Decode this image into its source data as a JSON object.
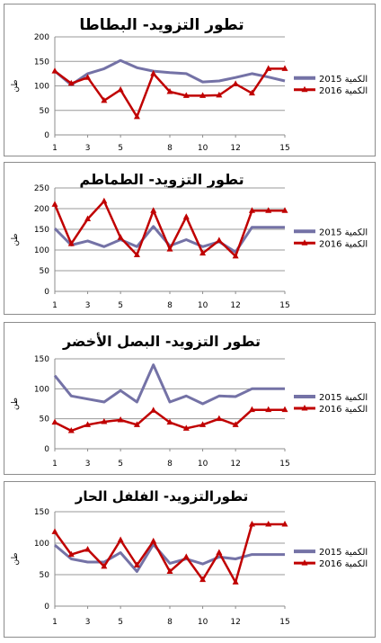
{
  "colors": {
    "series_2015": "#7472a6",
    "series_2016": "#c00000",
    "axis": "#8c8c8c",
    "grid": "#9a9a9a",
    "frame": "#8c8c8c"
  },
  "chart_data": [
    {
      "type": "line",
      "title": "تطور التزويد- البطاطا",
      "ylabel": "طن",
      "x": [
        1,
        2,
        3,
        4,
        5,
        6,
        7,
        8,
        9,
        10,
        11,
        12,
        13,
        14,
        15
      ],
      "x_ticks": [
        "1",
        "3",
        "5",
        "8",
        "10",
        "12",
        "15"
      ],
      "y_ticks": [
        "0",
        "50",
        "100",
        "150",
        "200"
      ],
      "ylim": [
        0,
        200
      ],
      "grid": true,
      "legend_position": "right",
      "series": [
        {
          "name": "الكمية 2015",
          "values": [
            130,
            102,
            125,
            135,
            152,
            137,
            130,
            127,
            125,
            108,
            110,
            117,
            125,
            118,
            110
          ]
        },
        {
          "name": "الكمية 2016",
          "values": [
            130,
            105,
            117,
            70,
            92,
            37,
            125,
            88,
            80,
            80,
            81,
            104,
            85,
            135,
            135
          ]
        }
      ]
    },
    {
      "type": "line",
      "title": "تطور التزويد- الطماطم",
      "ylabel": "طن",
      "x": [
        1,
        2,
        3,
        4,
        5,
        6,
        7,
        8,
        9,
        10,
        11,
        12,
        13,
        14,
        15
      ],
      "x_ticks": [
        "1",
        "3",
        "5",
        "8",
        "10",
        "12",
        "15"
      ],
      "y_ticks": [
        "0",
        "50",
        "100",
        "150",
        "200",
        "250"
      ],
      "ylim": [
        0,
        250
      ],
      "grid": true,
      "legend_position": "right",
      "series": [
        {
          "name": "الكمية 2015",
          "values": [
            152,
            112,
            122,
            108,
            125,
            108,
            157,
            110,
            125,
            108,
            120,
            95,
            155,
            155,
            155
          ]
        },
        {
          "name": "الكمية 2016",
          "values": [
            210,
            115,
            175,
            218,
            130,
            88,
            195,
            102,
            180,
            92,
            123,
            85,
            195,
            195,
            195
          ]
        }
      ]
    },
    {
      "type": "line",
      "title": "تطور التزويد- البصل الأخضر",
      "ylabel": "طن",
      "x": [
        1,
        2,
        3,
        4,
        5,
        6,
        7,
        8,
        9,
        10,
        11,
        12,
        13,
        14,
        15
      ],
      "x_ticks": [
        "1",
        "3",
        "5",
        "8",
        "10",
        "12",
        "15"
      ],
      "y_ticks": [
        "0",
        "50",
        "100",
        "150"
      ],
      "ylim": [
        0,
        150
      ],
      "grid": true,
      "legend_position": "right",
      "series": [
        {
          "name": "الكمية 2015",
          "values": [
            122,
            88,
            83,
            78,
            97,
            78,
            140,
            78,
            88,
            75,
            88,
            87,
            100,
            100,
            100
          ]
        },
        {
          "name": "الكمية 2016",
          "values": [
            44,
            30,
            40,
            45,
            48,
            40,
            64,
            44,
            34,
            40,
            50,
            40,
            65,
            65,
            65
          ]
        }
      ]
    },
    {
      "type": "line",
      "title": "تطورالتزويد- الفلفل الحار",
      "ylabel": "طن",
      "x": [
        1,
        2,
        3,
        4,
        5,
        6,
        7,
        8,
        9,
        10,
        11,
        12,
        13,
        14,
        15
      ],
      "x_ticks": [
        "1",
        "3",
        "5",
        "8",
        "10",
        "12",
        "15"
      ],
      "y_ticks": [
        "0",
        "50",
        "100",
        "150"
      ],
      "ylim": [
        0,
        150
      ],
      "grid": true,
      "legend_position": "right",
      "series": [
        {
          "name": "الكمية 2015",
          "values": [
            97,
            75,
            70,
            70,
            85,
            55,
            98,
            68,
            75,
            67,
            78,
            75,
            82,
            82,
            82
          ]
        },
        {
          "name": "الكمية 2016",
          "values": [
            118,
            82,
            90,
            63,
            105,
            65,
            103,
            55,
            78,
            42,
            85,
            38,
            130,
            130,
            130
          ]
        }
      ]
    }
  ]
}
